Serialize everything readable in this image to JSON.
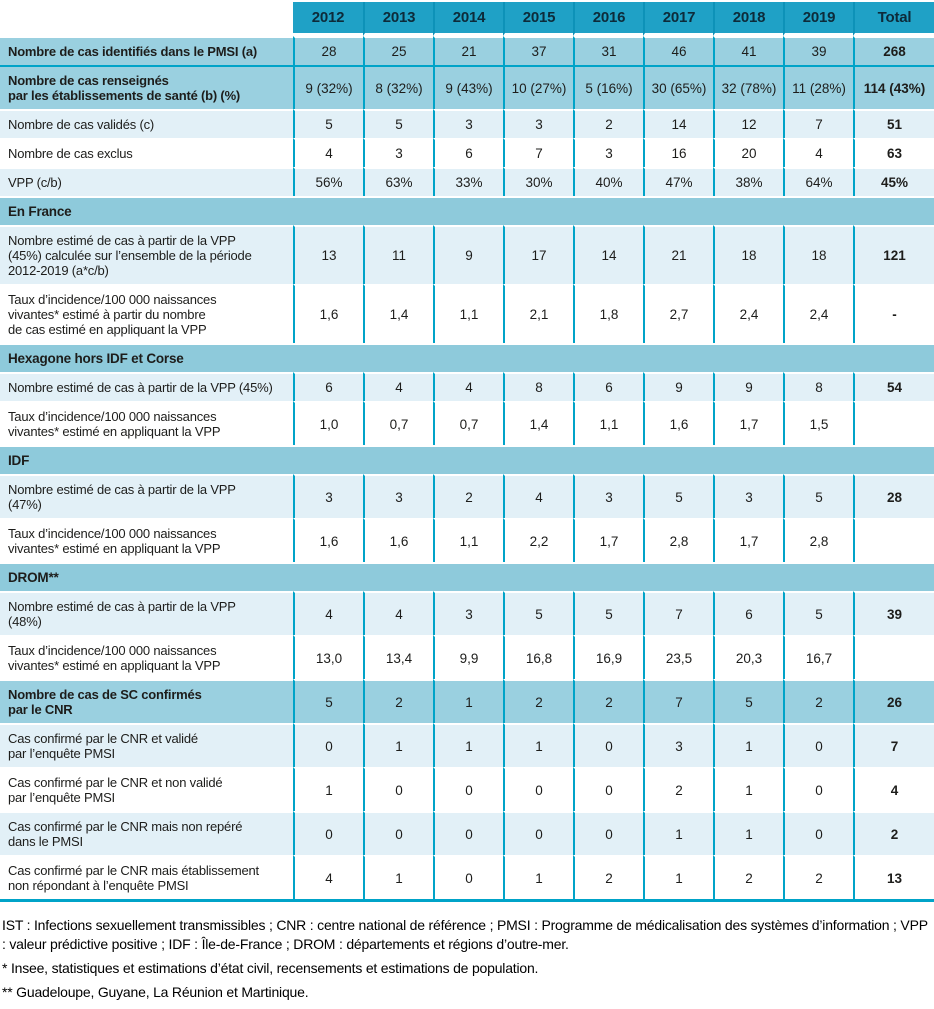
{
  "colors": {
    "header_bg": "#1fa1c6",
    "header_divider": "#0d92b8",
    "header_text": "#0d2b3a",
    "border_teal": "#00a3c8",
    "row_medium": "#9ad0e0",
    "row_light": "#e2f0f7",
    "row_white": "#ffffff",
    "band_bg": "#8ecadb",
    "text": "#1d1d1b"
  },
  "table": {
    "corner_label": "",
    "columns": [
      "2012",
      "2013",
      "2014",
      "2015",
      "2016",
      "2017",
      "2018",
      "2019",
      "Total"
    ],
    "rows": [
      {
        "type": "data",
        "style": "medium",
        "bold_label": true,
        "teal_sep": false,
        "label": "Nombre de cas identifiés dans le PMSI (a)",
        "values": [
          "28",
          "25",
          "21",
          "37",
          "31",
          "46",
          "41",
          "39"
        ],
        "total": "268"
      },
      {
        "type": "data",
        "style": "medium",
        "bold_label": true,
        "teal_sep": true,
        "label": "Nombre de cas renseignés\npar les établissements de santé (b) (%)",
        "values": [
          "9 (32%)",
          "8 (32%)",
          "9 (43%)",
          "10 (27%)",
          "5 (16%)",
          "30 (65%)",
          "32 (78%)",
          "11 (28%)"
        ],
        "total": "114 (43%)"
      },
      {
        "type": "data",
        "style": "light",
        "bold_label": false,
        "label": "Nombre de cas validés (c)",
        "values": [
          "5",
          "5",
          "3",
          "3",
          "2",
          "14",
          "12",
          "7"
        ],
        "total": "51"
      },
      {
        "type": "data",
        "style": "white",
        "bold_label": false,
        "label": "Nombre de cas exclus",
        "values": [
          "4",
          "3",
          "6",
          "7",
          "3",
          "16",
          "20",
          "4"
        ],
        "total": "63"
      },
      {
        "type": "data",
        "style": "light",
        "bold_label": false,
        "label": "VPP (c/b)",
        "values": [
          "56%",
          "63%",
          "33%",
          "30%",
          "40%",
          "47%",
          "38%",
          "64%"
        ],
        "total": "45%"
      },
      {
        "type": "section",
        "label": "En France"
      },
      {
        "type": "data",
        "style": "light",
        "bold_label": false,
        "label": "Nombre estimé de cas à partir de la VPP\n(45%) calculée sur l’ensemble de la période\n2012-2019 (a*c/b)",
        "values": [
          "13",
          "11",
          "9",
          "17",
          "14",
          "21",
          "18",
          "18"
        ],
        "total": "121"
      },
      {
        "type": "data",
        "style": "white",
        "bold_label": false,
        "label": "Taux d’incidence/100 000 naissances\nvivantes* estimé à partir du nombre\nde cas estimé en appliquant la VPP",
        "values": [
          "1,6",
          "1,4",
          "1,1",
          "2,1",
          "1,8",
          "2,7",
          "2,4",
          "2,4"
        ],
        "total": "-"
      },
      {
        "type": "section",
        "label": "Hexagone hors IDF et Corse"
      },
      {
        "type": "data",
        "style": "light",
        "bold_label": false,
        "label": "Nombre estimé de cas à partir de la VPP (45%)",
        "values": [
          "6",
          "4",
          "4",
          "8",
          "6",
          "9",
          "9",
          "8"
        ],
        "total": "54"
      },
      {
        "type": "data",
        "style": "white",
        "bold_label": false,
        "label": "Taux d’incidence/100 000 naissances\nvivantes* estimé en appliquant la VPP",
        "values": [
          "1,0",
          "0,7",
          "0,7",
          "1,4",
          "1,1",
          "1,6",
          "1,7",
          "1,5"
        ],
        "total": ""
      },
      {
        "type": "section",
        "label": "IDF"
      },
      {
        "type": "data",
        "style": "light",
        "bold_label": false,
        "label": "Nombre estimé de cas à partir de la VPP\n(47%)",
        "values": [
          "3",
          "3",
          "2",
          "4",
          "3",
          "5",
          "3",
          "5"
        ],
        "total": "28"
      },
      {
        "type": "data",
        "style": "white",
        "bold_label": false,
        "label": "Taux d’incidence/100 000 naissances\nvivantes* estimé en appliquant la VPP",
        "values": [
          "1,6",
          "1,6",
          "1,1",
          "2,2",
          "1,7",
          "2,8",
          "1,7",
          "2,8"
        ],
        "total": ""
      },
      {
        "type": "section",
        "label": "DROM**"
      },
      {
        "type": "data",
        "style": "light",
        "bold_label": false,
        "label": "Nombre estimé de cas à partir de la VPP\n(48%)",
        "values": [
          "4",
          "4",
          "3",
          "5",
          "5",
          "7",
          "6",
          "5"
        ],
        "total": "39"
      },
      {
        "type": "data",
        "style": "white",
        "bold_label": false,
        "label": "Taux d’incidence/100 000 naissances\nvivantes* estimé en appliquant la VPP",
        "values": [
          "13,0",
          "13,4",
          "9,9",
          "16,8",
          "16,9",
          "23,5",
          "20,3",
          "16,7"
        ],
        "total": ""
      },
      {
        "type": "data",
        "style": "medium",
        "bold_label": true,
        "teal_sep": false,
        "label": "Nombre de cas de SC confirmés\npar le CNR",
        "values": [
          "5",
          "2",
          "1",
          "2",
          "2",
          "7",
          "5",
          "2"
        ],
        "total": "26"
      },
      {
        "type": "data",
        "style": "light",
        "bold_label": false,
        "label": "Cas confirmé par le CNR et validé\npar l’enquête PMSI",
        "values": [
          "0",
          "1",
          "1",
          "1",
          "0",
          "3",
          "1",
          "0"
        ],
        "total": "7"
      },
      {
        "type": "data",
        "style": "white",
        "bold_label": false,
        "label": "Cas confirmé par le CNR et non validé\npar l’enquête PMSI",
        "values": [
          "1",
          "0",
          "0",
          "0",
          "0",
          "2",
          "1",
          "0"
        ],
        "total": "4"
      },
      {
        "type": "data",
        "style": "light",
        "bold_label": false,
        "label": "Cas confirmé par le CNR mais non repéré\ndans le PMSI",
        "values": [
          "0",
          "0",
          "0",
          "0",
          "0",
          "1",
          "1",
          "0"
        ],
        "total": "2"
      },
      {
        "type": "data",
        "style": "white",
        "bold_label": false,
        "label": "Cas confirmé par le CNR mais établissement\nnon répondant à l’enquête PMSI",
        "values": [
          "4",
          "1",
          "0",
          "1",
          "2",
          "1",
          "2",
          "2"
        ],
        "total": "13"
      }
    ]
  },
  "footnotes": [
    "IST : Infections sexuellement transmissibles ; CNR : centre national de référence ; PMSI : Programme de médicalisation des systèmes d’information ; VPP : valeur prédictive positive ; IDF : Île-de-France ; DROM : départements et régions d’outre-mer.",
    "* Insee, statistiques et estimations d’état civil, recensements et estimations de population.",
    "** Guadeloupe, Guyane, La Réunion et Martinique."
  ]
}
